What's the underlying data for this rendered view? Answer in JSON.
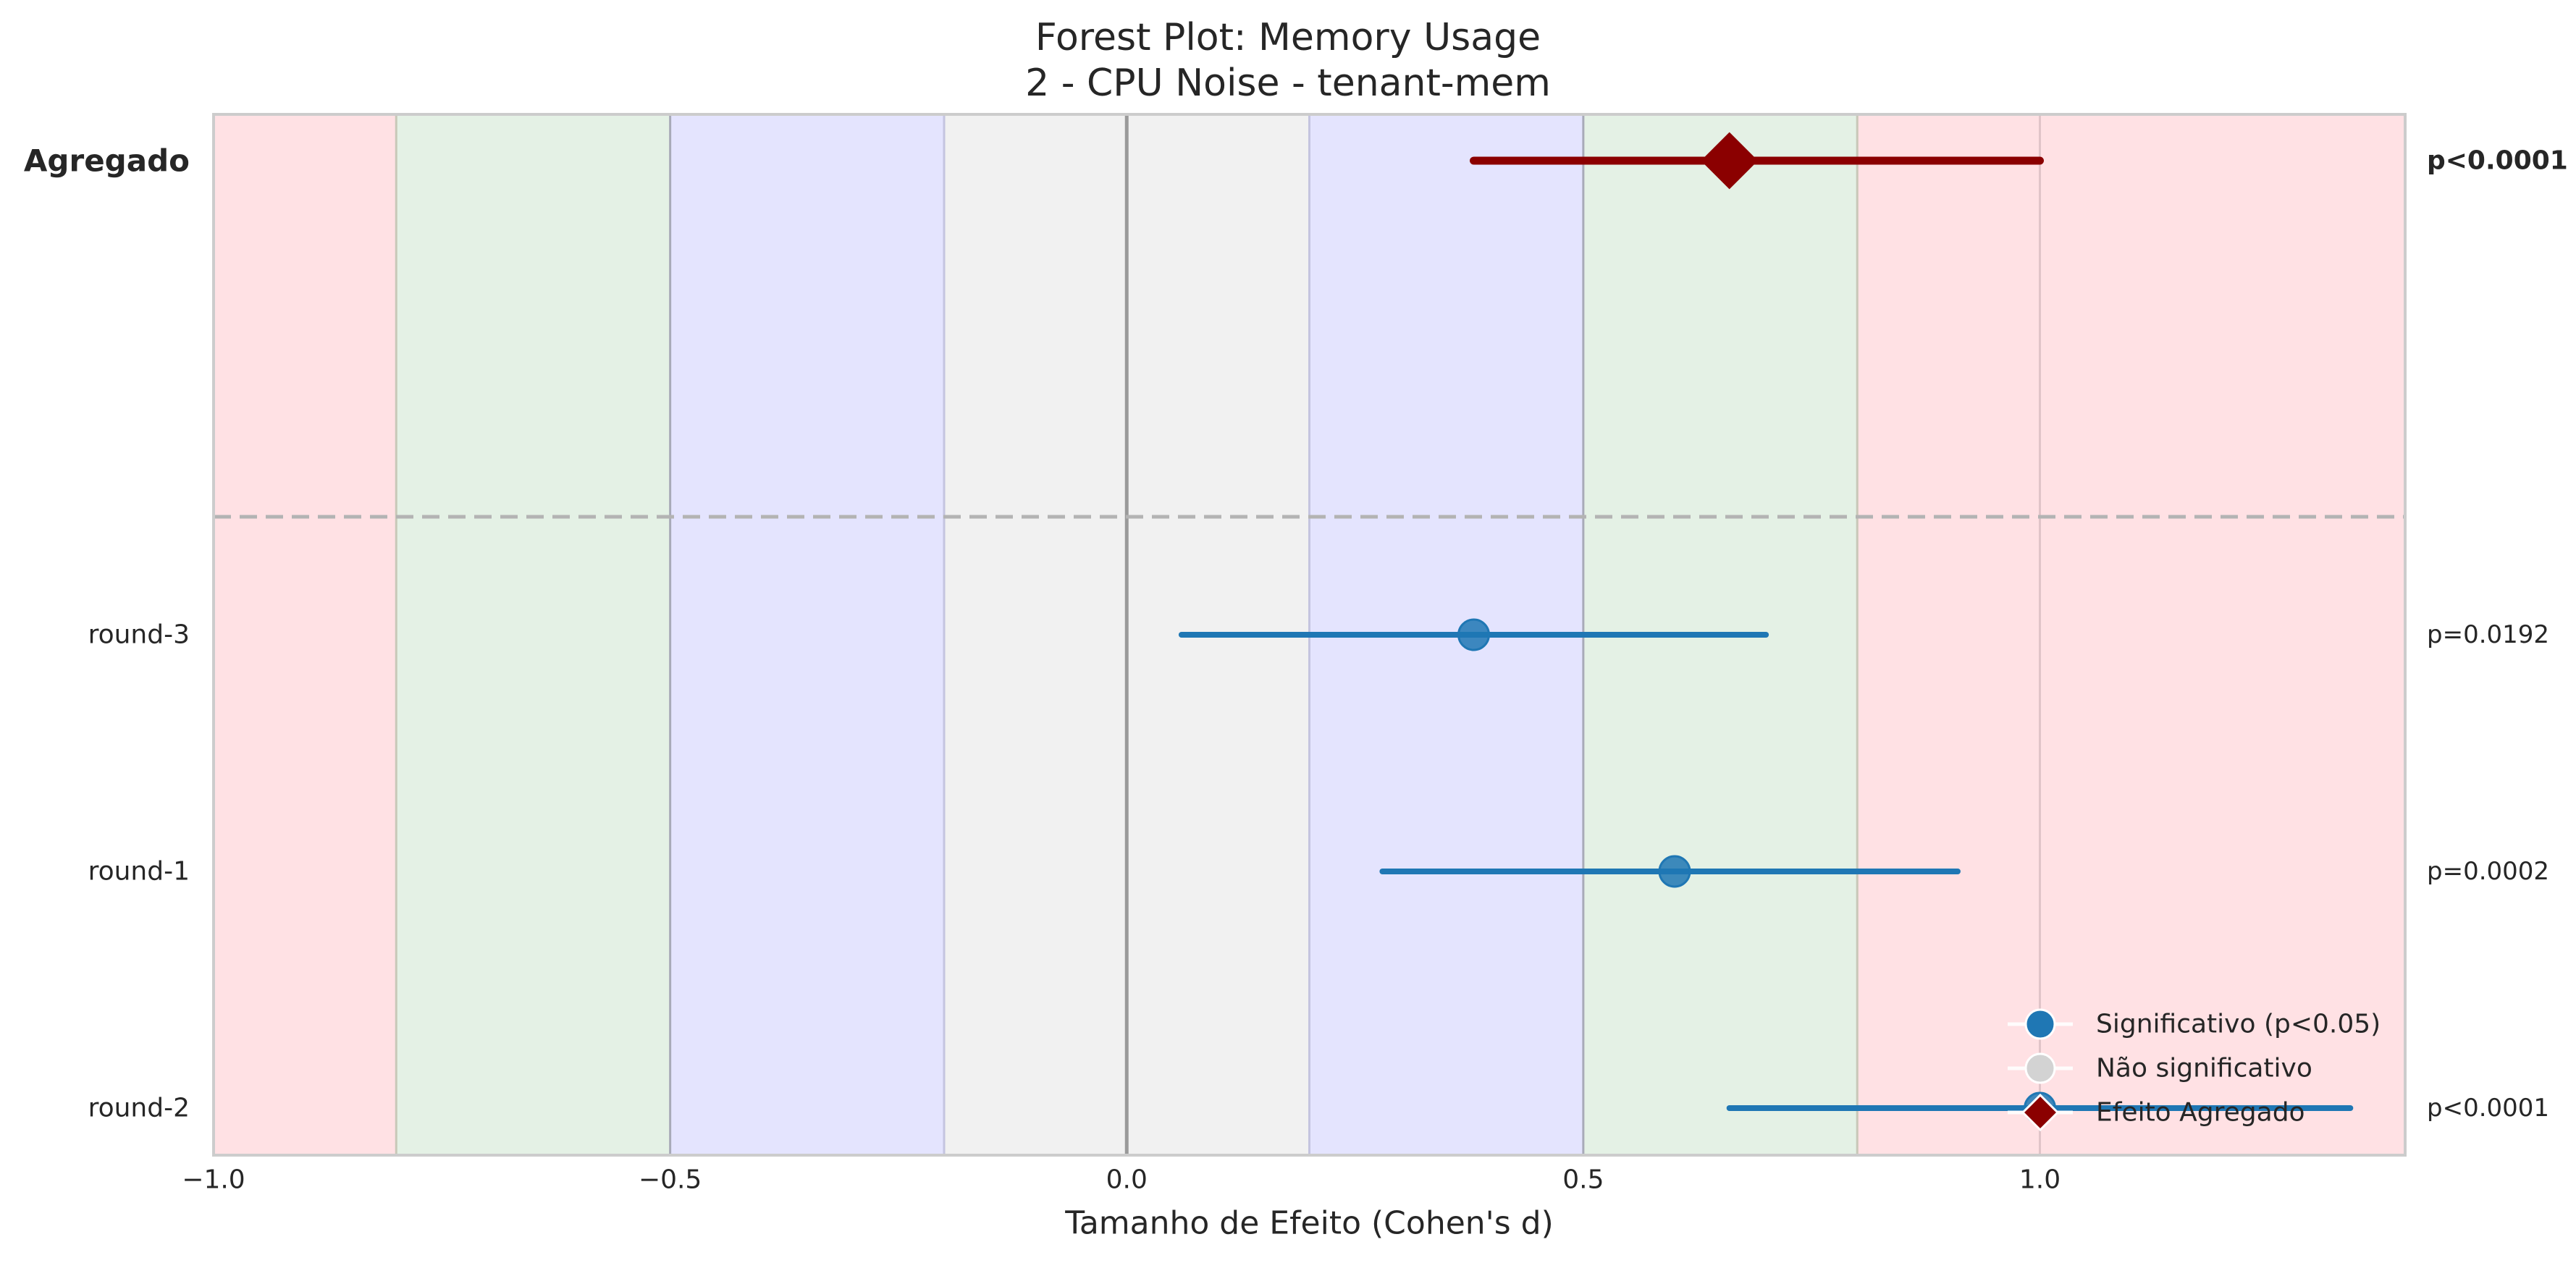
{
  "chart_data": {
    "type": "forest",
    "title": "Forest Plot: Memory Usage",
    "subtitle": "2 - CPU Noise - tenant-mem",
    "xlabel": "Tamanho de Efeito (Cohen's d)",
    "xlim": [
      -1.0,
      1.4
    ],
    "xticks": [
      -1.0,
      -0.5,
      0.0,
      0.5,
      1.0
    ],
    "xtick_labels": [
      "−1.0",
      "−0.5",
      "0.0",
      "0.5",
      "1.0"
    ],
    "aggregate": {
      "label": "Agregado",
      "estimate": 0.66,
      "ci": [
        0.38,
        1.0
      ],
      "p_label": "p<0.0001",
      "color": "#8b0000"
    },
    "rows": [
      {
        "label": "round-3",
        "estimate": 0.38,
        "ci": [
          0.06,
          0.7
        ],
        "p_label": "p=0.0192",
        "significant": true
      },
      {
        "label": "round-1",
        "estimate": 0.6,
        "ci": [
          0.28,
          0.91
        ],
        "p_label": "p=0.0002",
        "significant": true
      },
      {
        "label": "round-2",
        "estimate": 1.0,
        "ci": [
          0.66,
          1.34
        ],
        "p_label": "p<0.0001",
        "significant": true
      }
    ],
    "bands": [
      {
        "from": -1.0,
        "to": -0.8,
        "color": "#ffe1e4"
      },
      {
        "from": -0.8,
        "to": -0.5,
        "color": "#e4f1e5"
      },
      {
        "from": -0.5,
        "to": -0.2,
        "color": "#e4e4fe"
      },
      {
        "from": -0.2,
        "to": 0.2,
        "color": "#f1f1f1"
      },
      {
        "from": 0.2,
        "to": 0.5,
        "color": "#e4e4fe"
      },
      {
        "from": 0.5,
        "to": 0.8,
        "color": "#e4f1e5"
      },
      {
        "from": 0.8,
        "to": 1.4,
        "color": "#ffe1e4"
      }
    ],
    "reference_line": 0.0,
    "legend": {
      "position": "lower-right",
      "entries": [
        {
          "label": "Significativo (p<0.05)",
          "marker": "circle",
          "color": "#1f77b4"
        },
        {
          "label": "Não significativo",
          "marker": "circle",
          "color": "#d3d3d3"
        },
        {
          "label": "Efeito Agregado",
          "marker": "diamond",
          "color": "#8b0000"
        }
      ]
    },
    "colors": {
      "significant": "#1f77b4",
      "not_significant": "#d3d3d3",
      "aggregate": "#8b0000"
    },
    "grid": false
  }
}
